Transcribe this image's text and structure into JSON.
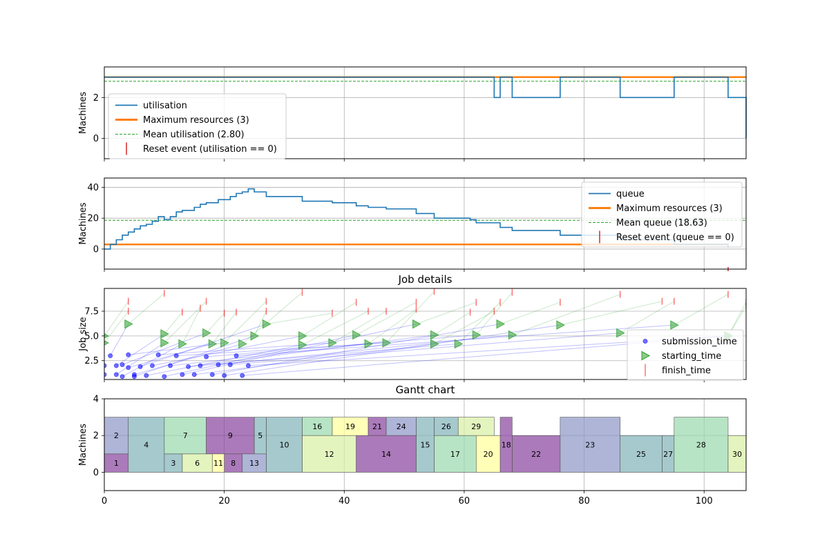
{
  "colors": {
    "utilisation": "#1f77b4",
    "max_resources": "#ff7f0e",
    "mean": "#2ca02c",
    "reset": "#d62728",
    "submission": "#0000ff",
    "starting": "#2ca02c",
    "finish": "#ff0000",
    "grid": "#b0b0b0",
    "gantt_palette": [
      "#8c96c6",
      "#7fb2b8",
      "#99d8ad",
      "#d9f0a3",
      "#ffff99",
      "#88419d"
    ]
  },
  "chart_data": [
    {
      "id": "utilisation",
      "type": "line",
      "title": "",
      "ylabel": "Machines",
      "xlim": [
        0,
        107
      ],
      "ylim": [
        -1,
        3.5
      ],
      "yticks": [
        0,
        2
      ],
      "grid": true,
      "legend_position": "lower-left",
      "legend": [
        {
          "label": "utilisation",
          "kind": "line"
        },
        {
          "label": "Maximum resources (3)",
          "kind": "thick"
        },
        {
          "label": "Mean utilisation (2.80)",
          "kind": "dashed"
        },
        {
          "label": "Reset event (utilisation == 0)",
          "kind": "tick"
        }
      ],
      "series": [
        {
          "kind": "step",
          "x": [
            0,
            65,
            66,
            67,
            68,
            76,
            86,
            95,
            104,
            107
          ],
          "y": [
            3,
            2,
            3,
            3,
            2,
            3,
            2,
            3,
            2,
            0
          ]
        },
        {
          "kind": "hline",
          "y": 3
        },
        {
          "kind": "dashed",
          "y": 2.8
        }
      ]
    },
    {
      "id": "queue",
      "type": "line",
      "title": "",
      "ylabel": "Machines",
      "xlim": [
        0,
        107
      ],
      "ylim": [
        -13,
        46
      ],
      "yticks": [
        0,
        20,
        40
      ],
      "grid": true,
      "legend_position": "upper-right",
      "legend": [
        {
          "label": "queue",
          "kind": "line"
        },
        {
          "label": "Maximum resources (3)",
          "kind": "thick"
        },
        {
          "label": "Mean queue (18.63)",
          "kind": "dashed"
        },
        {
          "label": "Reset event (queue == 0)",
          "kind": "tick"
        }
      ],
      "series": [
        {
          "kind": "step",
          "x": [
            0,
            1,
            2,
            3,
            4,
            5,
            6,
            7,
            8,
            9,
            10,
            11,
            12,
            13,
            15,
            16,
            17,
            19,
            21,
            22,
            23,
            24,
            25,
            27,
            33,
            38,
            42,
            44,
            47,
            52,
            55,
            61,
            62,
            66,
            68,
            76,
            86,
            95,
            104
          ],
          "y": [
            0,
            3,
            6,
            9,
            11,
            13,
            15,
            16,
            18,
            21,
            19,
            21,
            24,
            25,
            27,
            29,
            30,
            32,
            34,
            36,
            37,
            39,
            37,
            34,
            31,
            30,
            28,
            27,
            26,
            23,
            20,
            19,
            17,
            14,
            12,
            9,
            6,
            3,
            1
          ]
        },
        {
          "kind": "hline",
          "y": 3
        },
        {
          "kind": "dashed",
          "y": 18.63
        },
        {
          "kind": "reset",
          "x": [
            104
          ]
        }
      ]
    },
    {
      "id": "jobs",
      "type": "scatter",
      "title": "Job details",
      "ylabel": "Job size",
      "xlim": [
        0,
        107
      ],
      "ylim": [
        0.6,
        9.8
      ],
      "yticks": [
        2.5,
        5.0,
        7.5
      ],
      "ytick_labels": [
        "2.5",
        "5.0",
        "7.5"
      ],
      "grid": true,
      "legend_position": "lower-right",
      "legend": [
        {
          "label": "submission_time",
          "kind": "circle"
        },
        {
          "label": "starting_time",
          "kind": "triangle"
        },
        {
          "label": "finish_time",
          "kind": "tick"
        }
      ],
      "jobs": [
        {
          "s": 0,
          "ss": 1.1,
          "t": 0,
          "ts": 5.0,
          "f": 4,
          "fs": 8.5
        },
        {
          "s": 0,
          "ss": 2.0,
          "t": 0,
          "ts": 4.3,
          "f": 4,
          "fs": 7.5
        },
        {
          "s": 1,
          "ss": 3.0,
          "t": 4,
          "ts": 6.2,
          "f": 10,
          "fs": 9.3
        },
        {
          "s": 2,
          "ss": 1.1,
          "t": 10,
          "ts": 4.3,
          "f": 17,
          "fs": 8.5
        },
        {
          "s": 2,
          "ss": 2.0,
          "t": 10,
          "ts": 5.2,
          "f": 13,
          "fs": 7.4
        },
        {
          "s": 3,
          "ss": 0.9,
          "t": 13,
          "ts": 4.2,
          "f": 16,
          "fs": 7.8
        },
        {
          "s": 3,
          "ss": 2.1,
          "t": 17,
          "ts": 5.3,
          "f": 20,
          "fs": 7.3
        },
        {
          "s": 4,
          "ss": 1.8,
          "t": 18,
          "ts": 4.2,
          "f": 22,
          "fs": 7.4
        },
        {
          "s": 4,
          "ss": 3.1,
          "t": 20,
          "ts": 4.3,
          "f": 27,
          "fs": 8.5
        },
        {
          "s": 5,
          "ss": 1.1,
          "t": 23,
          "ts": 4.2,
          "f": 33,
          "fs": 9.4
        },
        {
          "s": 5,
          "ss": 0.9,
          "t": 25,
          "ts": 5.0,
          "f": 27,
          "fs": 7.5
        },
        {
          "s": 6,
          "ss": 1.9,
          "t": 27,
          "ts": 6.2,
          "f": 38,
          "fs": 7.3
        },
        {
          "s": 7,
          "ss": 1.0,
          "t": 33,
          "ts": 4.1,
          "f": 44,
          "fs": 7.5
        },
        {
          "s": 8,
          "ss": 2.0,
          "t": 33,
          "ts": 5.0,
          "f": 42,
          "fs": 8.4
        },
        {
          "s": 9,
          "ss": 3.1,
          "t": 38,
          "ts": 4.3,
          "f": 47,
          "fs": 7.5
        },
        {
          "s": 10,
          "ss": 0.9,
          "t": 42,
          "ts": 5.1,
          "f": 52,
          "fs": 8.4
        },
        {
          "s": 11,
          "ss": 2.0,
          "t": 44,
          "ts": 4.2,
          "f": 52,
          "fs": 7.7
        },
        {
          "s": 12,
          "ss": 3.0,
          "t": 47,
          "ts": 4.3,
          "f": 55,
          "fs": 9.5
        },
        {
          "s": 13,
          "ss": 1.1,
          "t": 52,
          "ts": 6.2,
          "f": 62,
          "fs": 8.4
        },
        {
          "s": 14,
          "ss": 1.9,
          "t": 55,
          "ts": 5.1,
          "f": 61,
          "fs": 7.4
        },
        {
          "s": 15,
          "ss": 1.1,
          "t": 55,
          "ts": 4.2,
          "f": 65,
          "fs": 7.5
        },
        {
          "s": 16,
          "ss": 2.0,
          "t": 59,
          "ts": 4.2,
          "f": 66,
          "fs": 8.4
        },
        {
          "s": 17,
          "ss": 2.9,
          "t": 62,
          "ts": 5.1,
          "f": 68,
          "fs": 9.4
        },
        {
          "s": 18,
          "ss": 1.1,
          "t": 66,
          "ts": 6.2,
          "f": 76,
          "fs": 8.4
        },
        {
          "s": 19,
          "ss": 2.1,
          "t": 68,
          "ts": 5.1,
          "f": 86,
          "fs": 9.2
        },
        {
          "s": 20,
          "ss": 1.0,
          "t": 76,
          "ts": 6.1,
          "f": 93,
          "fs": 8.5
        },
        {
          "s": 21,
          "ss": 2.1,
          "t": 86,
          "ts": 5.3,
          "f": 95,
          "fs": 8.5
        },
        {
          "s": 22,
          "ss": 3.0,
          "t": 95,
          "ts": 6.1,
          "f": 104,
          "fs": 9.2
        },
        {
          "s": 23,
          "ss": 1.0,
          "t": 104,
          "ts": 5.0,
          "f": 107,
          "fs": 8.4
        },
        {
          "s": 24,
          "ss": 2.0,
          "t": 104,
          "ts": 5.0,
          "f": 107,
          "fs": 8.0
        }
      ]
    },
    {
      "id": "gantt",
      "type": "bar",
      "title": "Gantt chart",
      "ylabel": "Machines",
      "xlim": [
        0,
        107
      ],
      "ylim": [
        -1,
        4
      ],
      "yticks": [
        0,
        2,
        4
      ],
      "xticks": [
        0,
        20,
        40,
        60,
        80,
        100
      ],
      "grid": true,
      "jobs": [
        {
          "label": "1",
          "x0": 0,
          "x1": 4,
          "y0": 0,
          "y1": 1,
          "c": 5
        },
        {
          "label": "2",
          "x0": 0,
          "x1": 4,
          "y0": 1,
          "y1": 3,
          "c": 0
        },
        {
          "label": "3",
          "x0": 10,
          "x1": 13,
          "y0": 0,
          "y1": 1,
          "c": 1
        },
        {
          "label": "4",
          "x0": 4,
          "x1": 10,
          "y0": 0,
          "y1": 3,
          "c": 1
        },
        {
          "label": "5",
          "x0": 25,
          "x1": 27,
          "y0": 1,
          "y1": 3,
          "c": 1
        },
        {
          "label": "6",
          "x0": 13,
          "x1": 18,
          "y0": 0,
          "y1": 1,
          "c": 3
        },
        {
          "label": "7",
          "x0": 10,
          "x1": 17,
          "y0": 1,
          "y1": 3,
          "c": 2
        },
        {
          "label": "8",
          "x0": 20,
          "x1": 23,
          "y0": 0,
          "y1": 1,
          "c": 5
        },
        {
          "label": "9",
          "x0": 17,
          "x1": 25,
          "y0": 1,
          "y1": 3,
          "c": 5
        },
        {
          "label": "10",
          "x0": 27,
          "x1": 33,
          "y0": 0,
          "y1": 3,
          "c": 1
        },
        {
          "label": "11",
          "x0": 18,
          "x1": 20,
          "y0": 0,
          "y1": 1,
          "c": 4
        },
        {
          "label": "12",
          "x0": 33,
          "x1": 42,
          "y0": 0,
          "y1": 2,
          "c": 3
        },
        {
          "label": "13",
          "x0": 23,
          "x1": 27,
          "y0": 0,
          "y1": 1,
          "c": 0
        },
        {
          "label": "14",
          "x0": 42,
          "x1": 52,
          "y0": 0,
          "y1": 2,
          "c": 5
        },
        {
          "label": "15",
          "x0": 52,
          "x1": 55,
          "y0": 0,
          "y1": 3,
          "c": 1
        },
        {
          "label": "16",
          "x0": 33,
          "x1": 38,
          "y0": 2,
          "y1": 3,
          "c": 2
        },
        {
          "label": "17",
          "x0": 55,
          "x1": 62,
          "y0": 0,
          "y1": 2,
          "c": 2
        },
        {
          "label": "18",
          "x0": 66,
          "x1": 68,
          "y0": 0,
          "y1": 3,
          "c": 5
        },
        {
          "label": "19",
          "x0": 38,
          "x1": 44,
          "y0": 2,
          "y1": 3,
          "c": 4
        },
        {
          "label": "20",
          "x0": 62,
          "x1": 66,
          "y0": 0,
          "y1": 2,
          "c": 4
        },
        {
          "label": "21",
          "x0": 44,
          "x1": 47,
          "y0": 2,
          "y1": 3,
          "c": 5
        },
        {
          "label": "22",
          "x0": 68,
          "x1": 76,
          "y0": 0,
          "y1": 2,
          "c": 5
        },
        {
          "label": "23",
          "x0": 76,
          "x1": 86,
          "y0": 0,
          "y1": 3,
          "c": 0
        },
        {
          "label": "24",
          "x0": 47,
          "x1": 52,
          "y0": 2,
          "y1": 3,
          "c": 0
        },
        {
          "label": "25",
          "x0": 86,
          "x1": 93,
          "y0": 0,
          "y1": 2,
          "c": 1
        },
        {
          "label": "26",
          "x0": 55,
          "x1": 59,
          "y0": 2,
          "y1": 3,
          "c": 1
        },
        {
          "label": "27",
          "x0": 93,
          "x1": 95,
          "y0": 0,
          "y1": 2,
          "c": 1
        },
        {
          "label": "28",
          "x0": 95,
          "x1": 104,
          "y0": 0,
          "y1": 3,
          "c": 2
        },
        {
          "label": "29",
          "x0": 59,
          "x1": 65,
          "y0": 2,
          "y1": 3,
          "c": 3
        },
        {
          "label": "30",
          "x0": 104,
          "x1": 107,
          "y0": 0,
          "y1": 2,
          "c": 3
        }
      ]
    }
  ]
}
